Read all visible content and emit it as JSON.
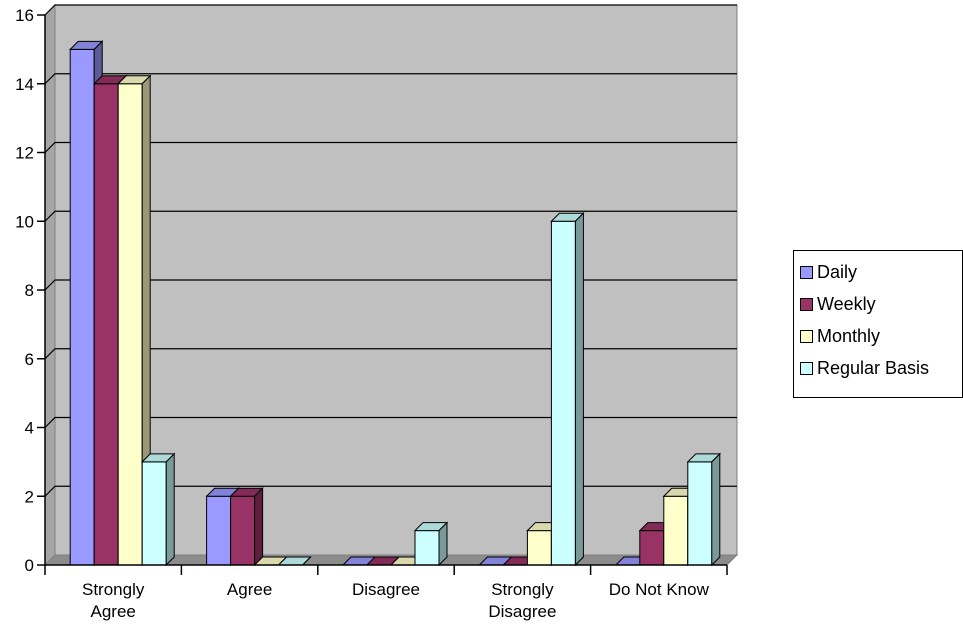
{
  "chart_data": {
    "type": "bar",
    "categories": [
      [
        "Strongly",
        "Agree"
      ],
      [
        "Agree"
      ],
      [
        "Disagree"
      ],
      [
        "Strongly",
        "Disagree"
      ],
      [
        "Do Not Know"
      ]
    ],
    "series": [
      {
        "name": "Daily",
        "values": [
          15,
          2,
          0,
          0,
          0
        ],
        "color": "#9999ff"
      },
      {
        "name": "Weekly",
        "values": [
          14,
          2,
          0,
          0,
          1
        ],
        "color": "#993366"
      },
      {
        "name": "Monthly",
        "values": [
          14,
          0,
          0,
          1,
          2
        ],
        "color": "#ffffcc"
      },
      {
        "name": "Regular Basis",
        "values": [
          3,
          0,
          1,
          10,
          3
        ],
        "color": "#ccffff"
      }
    ],
    "yticks": [
      "0",
      "2",
      "4",
      "6",
      "8",
      "10",
      "12",
      "14",
      "16"
    ],
    "ylim": [
      0,
      16
    ],
    "grid": true,
    "legend_position": "right",
    "plot_background": "#c0c0c0"
  }
}
